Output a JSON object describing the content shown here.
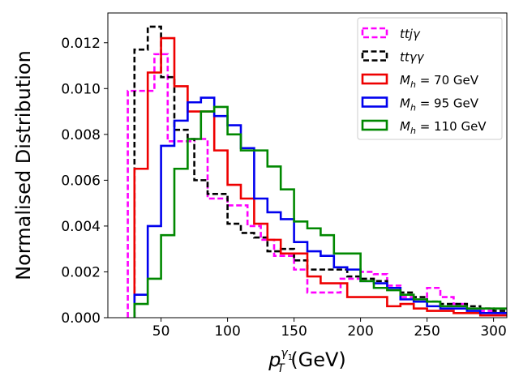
{
  "chart_data": {
    "type": "step-histogram",
    "title": "",
    "xlabel": "p_T^{γ1} (GeV)",
    "xlabel_main": "p",
    "xlabel_sub": "T",
    "xlabel_sup": "γ",
    "xlabel_supsub": "1",
    "xlabel_units": " (GeV)",
    "ylabel": "Normalised Distribution",
    "xlim": [
      10,
      310
    ],
    "ylim": [
      0,
      0.0133
    ],
    "xticks": [
      50,
      100,
      150,
      200,
      250,
      300
    ],
    "xtick_labels": [
      "50",
      "100",
      "150",
      "200",
      "250",
      "300"
    ],
    "yticks": [
      0,
      0.002,
      0.004,
      0.006,
      0.008,
      0.01,
      0.012
    ],
    "ytick_labels": [
      "0.000",
      "0.002",
      "0.004",
      "0.006",
      "0.008",
      "0.010",
      "0.012"
    ],
    "legend_position": "top-right",
    "series": [
      {
        "name": "ttjγ",
        "label_main": "ttjγ",
        "label_sub": "",
        "label_rest": "",
        "color": "#ff00ff",
        "dashed": true,
        "edges": [
          25,
          30,
          35,
          40,
          45,
          50,
          55,
          60,
          65,
          70,
          75,
          80,
          85,
          90,
          95,
          100,
          105,
          110,
          115,
          120,
          125,
          130,
          135,
          140,
          145,
          150,
          155,
          160,
          165,
          170,
          175,
          180,
          185,
          190,
          195,
          200,
          210,
          220,
          230,
          240,
          250,
          260,
          270,
          280,
          290,
          300,
          310
        ],
        "values": [
          0.0099,
          0.0099,
          0.0099,
          0.0099,
          0.0115,
          0.0115,
          0.0077,
          0.0077,
          0.0077,
          0.0077,
          0.0078,
          0.0078,
          0.0052,
          0.0052,
          0.0052,
          0.0049,
          0.0049,
          0.0049,
          0.004,
          0.004,
          0.0034,
          0.0034,
          0.0027,
          0.0027,
          0.0027,
          0.0021,
          0.0021,
          0.0011,
          0.0011,
          0.0011,
          0.0011,
          0.0011,
          0.0017,
          0.0017,
          0.0017,
          0.002,
          0.0019,
          0.0014,
          0.0009,
          0.0007,
          0.0013,
          0.0009,
          0.0006,
          0.0004,
          0.0003,
          0.0002
        ]
      },
      {
        "name": "ttγγ",
        "label_main": "ttγγ",
        "label_sub": "",
        "label_rest": "",
        "color": "#000000",
        "dashed": true,
        "edges": [
          30,
          35,
          40,
          45,
          50,
          55,
          60,
          65,
          70,
          75,
          80,
          85,
          90,
          95,
          100,
          105,
          110,
          115,
          120,
          125,
          130,
          135,
          140,
          145,
          150,
          155,
          160,
          165,
          170,
          175,
          180,
          185,
          190,
          195,
          200,
          210,
          220,
          230,
          240,
          250,
          260,
          270,
          280,
          290,
          300,
          310
        ],
        "values": [
          0.0117,
          0.0117,
          0.0127,
          0.0127,
          0.0105,
          0.0105,
          0.0082,
          0.0082,
          0.0078,
          0.006,
          0.006,
          0.0054,
          0.0054,
          0.0054,
          0.0041,
          0.0041,
          0.0037,
          0.0037,
          0.0035,
          0.0035,
          0.0029,
          0.0029,
          0.003,
          0.003,
          0.0025,
          0.0025,
          0.0021,
          0.0021,
          0.0021,
          0.0021,
          0.0021,
          0.0021,
          0.0018,
          0.0018,
          0.0017,
          0.0016,
          0.0013,
          0.0011,
          0.0009,
          0.0007,
          0.0006,
          0.0006,
          0.0005,
          0.0004,
          0.0003
        ]
      },
      {
        "name": "M_h=70 GeV",
        "label_main": "M",
        "label_sub": "h",
        "label_rest": " = 70 GeV",
        "color": "#ee0000",
        "dashed": false,
        "edges": [
          30,
          40,
          50,
          60,
          70,
          80,
          90,
          100,
          110,
          120,
          130,
          140,
          150,
          160,
          170,
          180,
          190,
          200,
          210,
          220,
          230,
          240,
          250,
          260,
          270,
          280,
          290,
          300,
          310
        ],
        "values": [
          0.0065,
          0.0107,
          0.0122,
          0.0101,
          0.009,
          0.009,
          0.0073,
          0.0058,
          0.0052,
          0.0041,
          0.0034,
          0.0028,
          0.0028,
          0.0018,
          0.0015,
          0.0015,
          0.0009,
          0.0009,
          0.0009,
          0.0005,
          0.0006,
          0.0004,
          0.0003,
          0.0003,
          0.0002,
          0.0002,
          0.0001,
          0.0001
        ]
      },
      {
        "name": "M_h=95 GeV",
        "label_main": "M",
        "label_sub": "h",
        "label_rest": " = 95 GeV",
        "color": "#0000ee",
        "dashed": false,
        "edges": [
          30,
          40,
          50,
          60,
          70,
          80,
          90,
          100,
          110,
          120,
          130,
          140,
          150,
          160,
          170,
          180,
          190,
          200,
          210,
          220,
          230,
          240,
          250,
          260,
          270,
          280,
          290,
          300,
          310
        ],
        "values": [
          0.001,
          0.004,
          0.0075,
          0.0086,
          0.0094,
          0.0096,
          0.0088,
          0.0084,
          0.0074,
          0.0052,
          0.0046,
          0.0043,
          0.0033,
          0.0029,
          0.0027,
          0.0022,
          0.0021,
          0.0016,
          0.0015,
          0.0013,
          0.0008,
          0.0007,
          0.0005,
          0.0004,
          0.0004,
          0.0003,
          0.0002,
          0.0002
        ]
      },
      {
        "name": "M_h=110 GeV",
        "label_main": "M",
        "label_sub": "h",
        "label_rest": " = 110 GeV",
        "color": "#008800",
        "dashed": false,
        "edges": [
          30,
          40,
          50,
          60,
          70,
          80,
          90,
          100,
          110,
          120,
          130,
          140,
          150,
          160,
          170,
          180,
          190,
          200,
          210,
          220,
          230,
          240,
          250,
          260,
          270,
          280,
          290,
          300,
          310
        ],
        "values": [
          0.0006,
          0.0017,
          0.0036,
          0.0065,
          0.0078,
          0.009,
          0.0092,
          0.008,
          0.0073,
          0.0073,
          0.0066,
          0.0056,
          0.0042,
          0.0039,
          0.0036,
          0.0028,
          0.0028,
          0.0016,
          0.0013,
          0.0012,
          0.001,
          0.0008,
          0.0007,
          0.0005,
          0.0005,
          0.0004,
          0.0004,
          0.0004
        ]
      }
    ]
  }
}
